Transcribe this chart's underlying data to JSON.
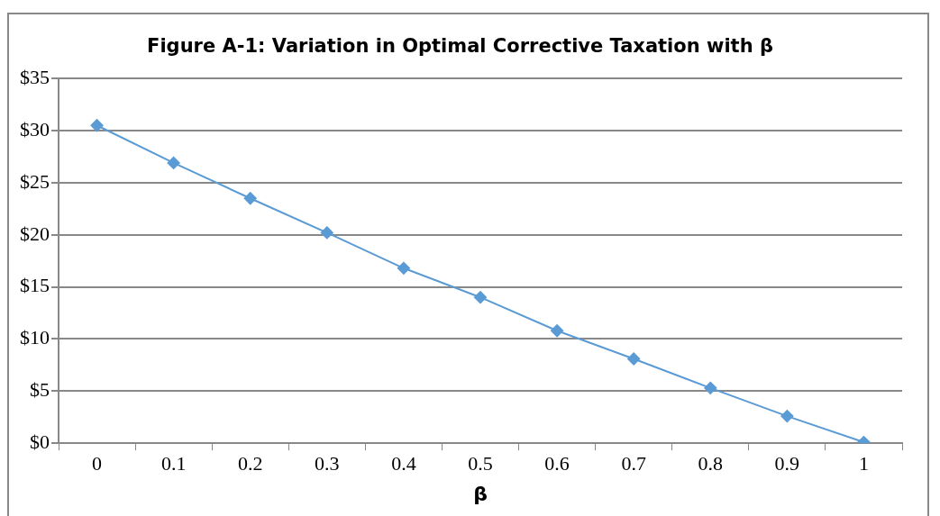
{
  "chart_data": {
    "type": "line",
    "title": "Figure A-1: Variation in Optimal Corrective Taxation with β",
    "xlabel": "β",
    "categories": [
      "0",
      "0.1",
      "0.2",
      "0.3",
      "0.4",
      "0.5",
      "0.6",
      "0.7",
      "0.8",
      "0.9",
      "1"
    ],
    "series": [
      {
        "color": "#5b9bd5",
        "values": [
          30.5,
          26.9,
          23.5,
          20.2,
          16.8,
          14.0,
          10.8,
          8.1,
          5.3,
          2.6,
          0.1
        ]
      }
    ],
    "ylim": [
      0,
      35
    ],
    "yticks": [
      {
        "value": 0,
        "label": "$0"
      },
      {
        "value": 5,
        "label": "$5"
      },
      {
        "value": 10,
        "label": "$10"
      },
      {
        "value": 15,
        "label": "$15"
      },
      {
        "value": 20,
        "label": "$20"
      },
      {
        "value": 25,
        "label": "$25"
      },
      {
        "value": 30,
        "label": "$30"
      },
      {
        "value": 35,
        "label": "$35"
      }
    ],
    "grid": "y",
    "legend": false,
    "marker": "diamond",
    "line_style": "solid"
  }
}
